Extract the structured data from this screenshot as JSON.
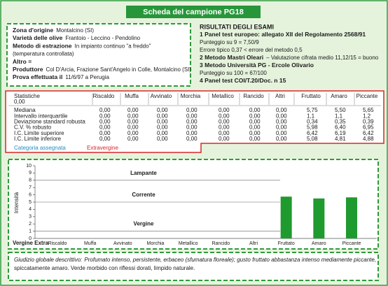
{
  "header": {
    "title": "Scheda del campione PG18"
  },
  "sample": [
    {
      "label": "Zona d'origine",
      "value": "Montalcino (SI)"
    },
    {
      "label": "Varietà delle olive",
      "value": "Frantoio - Leccino - Pendolino"
    },
    {
      "label": "Metodo di estrazione",
      "value": "In impianto continuo \"a freddo\""
    },
    {
      "value": "(temperatura controllata)"
    },
    {
      "label": "Altro ="
    },
    {
      "label": "Produttore",
      "value": "Col D'Arcia, Frazione Sant'Angelo in Colle, Montalcino (SI)"
    },
    {
      "label": "Prova effettuata il",
      "value": "11/6/97  a Perugia"
    }
  ],
  "results": {
    "title": "RISULTATI DEGLI ESAMI",
    "lines": [
      {
        "label": "1 Panel test europeo: allegato XII del Regolamento 2568/91"
      },
      {
        "value": "Punteggio su 9 = 7,50/9"
      },
      {
        "value": "Errore tipico 0,37 < errore del metodo 0,5"
      },
      {
        "label": "2 Metodo Mastri Oleari",
        "value": "– Valutazione cifrata medio 11,12/15 = buono"
      },
      {
        "label": "3 Metodo Università PG - Ercole Olivario"
      },
      {
        "value": "Punteggio su 100 = 67/100"
      },
      {
        "label": "4 Panel test COI/T.20/Doc. n 15"
      }
    ]
  },
  "table": {
    "corner": [
      "Statistiche",
      "0,00"
    ],
    "columns": [
      "Riscaldo",
      "Muffa",
      "Avvinato",
      "Morchia",
      "Metallico",
      "Rancido",
      "Altri",
      "Fruttato",
      "Amaro",
      "Piccante"
    ],
    "rows": [
      [
        "Mediana",
        "0,00",
        "0,00",
        "0,00",
        "0,00",
        "0,00",
        "0,00",
        "0,00",
        "5,75",
        "5,50",
        "5,65"
      ],
      [
        "Intervallo interquartile",
        "0,00",
        "0,00",
        "0,00",
        "0,00",
        "0,00",
        "0,00",
        "0,00",
        "1,1",
        "1,1",
        "1,2"
      ],
      [
        "Deviazione standard robusta",
        "0,00",
        "0,00",
        "0,00",
        "0,00",
        "0,00",
        "0,00",
        "0,00",
        "0,34",
        "0,35",
        "0,39"
      ],
      [
        "C.V. % robusto",
        "0,00",
        "0,00",
        "0,00",
        "0,00",
        "0,00",
        "0,00",
        "0,00",
        "5,98",
        "6,40",
        "6,95"
      ],
      [
        "I.C. Limite superiore",
        "0,00",
        "0,00",
        "0,00",
        "0,00",
        "0,00",
        "0,00",
        "0,00",
        "6,42",
        "6,19",
        "6,42"
      ],
      [
        "I.C. Limite inferiore",
        "0,00",
        "0,00",
        "0,00",
        "0,00",
        "0,00",
        "0,00",
        "0,00",
        "5,08",
        "4,81",
        "4,88"
      ]
    ]
  },
  "category": {
    "label": "Categoria assegnata",
    "value": "Extravergine"
  },
  "chart_data": {
    "type": "bar",
    "y_label": "Intensità",
    "x_title": "Vergine Extra",
    "categories": [
      "Riscaldo",
      "Muffa",
      "Avvinato",
      "Morchia",
      "Metallico",
      "Rancido",
      "Altri",
      "Fruttato",
      "Amaro",
      "Piccante"
    ],
    "values": [
      0,
      0,
      0,
      0,
      0,
      0,
      0,
      5.75,
      5.5,
      5.65
    ],
    "color": "#1f9a2e",
    "ylim": [
      0,
      10
    ],
    "yticks": [
      0,
      1,
      2,
      3,
      4,
      5,
      6,
      7,
      8,
      9,
      10
    ],
    "zones": [
      {
        "label": "Lampante",
        "value": 8
      },
      {
        "label": "Corrente",
        "value": 5
      },
      {
        "label": "Vergine",
        "value": 1
      }
    ]
  },
  "footer": {
    "label": "Giudizio globale descrittivo:",
    "lines": [
      "Profumato intenso, persistente, erbaceo (sfumatura floreale); gusto fruttato abbastanza intenso mediamente piccante,",
      "spiccatamente amaro. Verde morbido con riflessi dorati, limpido naturale."
    ]
  }
}
